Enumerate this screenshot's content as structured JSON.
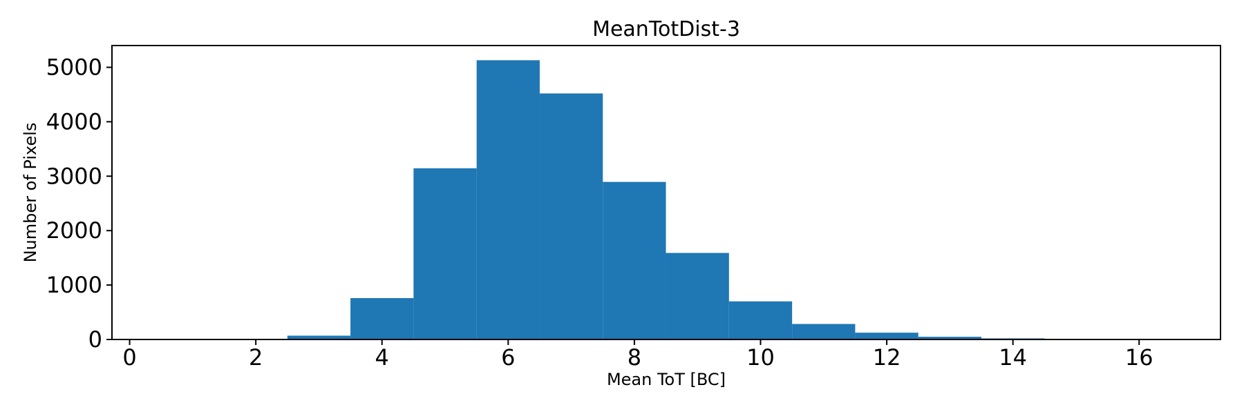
{
  "chart_data": {
    "type": "bar",
    "subtype": "histogram",
    "title": "MeanTotDist-3",
    "xlabel": "Mean ToT [BC]",
    "ylabel": "Number of Pixels",
    "bin_edges": [
      2.5,
      3.5,
      4.5,
      5.5,
      6.5,
      7.5,
      8.5,
      9.5,
      10.5,
      11.5,
      12.5,
      13.5,
      14.5,
      15.5
    ],
    "counts": [
      70,
      760,
      3145,
      5130,
      4520,
      2895,
      1590,
      700,
      285,
      125,
      50,
      20,
      8
    ],
    "xticks": [
      0,
      2,
      4,
      6,
      8,
      10,
      12,
      14,
      16
    ],
    "yticks": [
      0,
      1000,
      2000,
      3000,
      4000,
      5000
    ],
    "xlim": [
      -0.28,
      17.29
    ],
    "ylim": [
      0,
      5400
    ],
    "bar_color": "#1f77b4",
    "axis_color": "#000000",
    "background_color": "#ffffff",
    "grid": false,
    "legend": null
  }
}
